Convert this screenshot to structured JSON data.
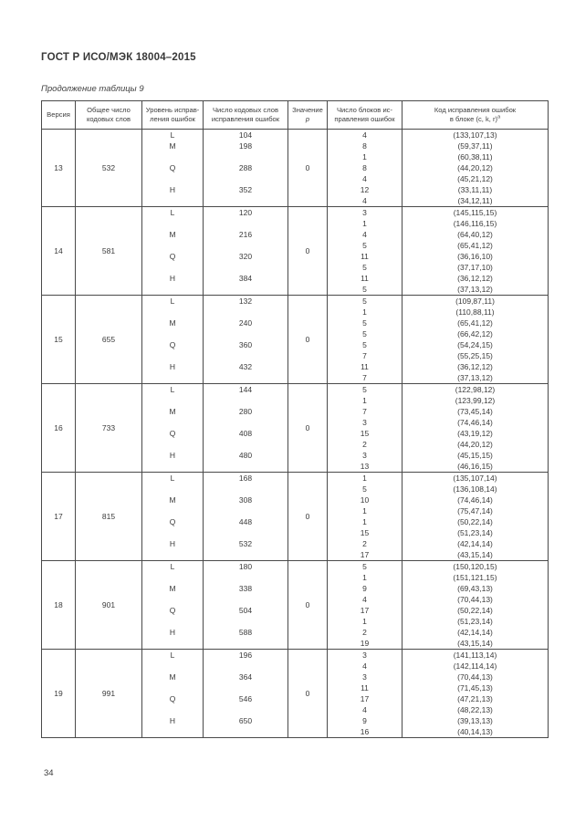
{
  "header": {
    "title": "ГОСТ Р ИСО/МЭК 18004–2015"
  },
  "footer": {
    "page_number": "34"
  },
  "table": {
    "caption": "Продолжение таблицы 9",
    "headers": [
      {
        "line1": "Версия"
      },
      {
        "line1": "Общее число",
        "line2": "кодовых слов"
      },
      {
        "line1": "Уровень исправ-",
        "line2": "ления ошибок"
      },
      {
        "line1": "Число кодовых слов",
        "line2": "исправления ошибок"
      },
      {
        "line1": "Значение",
        "line2": "p",
        "line2_italic": true
      },
      {
        "line1": "Число блоков ис-",
        "line2": "правления ошибок"
      },
      {
        "line1": "Код исправления ошибок",
        "line2": "в блоке (c, k, r)",
        "line2_sup": "а"
      }
    ],
    "versions": [
      {
        "version": "13",
        "total_codewords": "532",
        "p_value": "0",
        "levels": [
          {
            "level": "L",
            "ec_codewords": "104",
            "blocks": [
              {
                "count": "4",
                "code": "(133,107,13)"
              }
            ]
          },
          {
            "level": "M",
            "ec_codewords": "198",
            "blocks": [
              {
                "count": "8",
                "code": "(59,37,11)"
              },
              {
                "count": "1",
                "code": "(60,38,11)"
              }
            ]
          },
          {
            "level": "Q",
            "ec_codewords": "288",
            "blocks": [
              {
                "count": "8",
                "code": "(44,20,12)"
              },
              {
                "count": "4",
                "code": "(45,21,12)"
              }
            ]
          },
          {
            "level": "H",
            "ec_codewords": "352",
            "blocks": [
              {
                "count": "12",
                "code": "(33,11,11)"
              },
              {
                "count": "4",
                "code": "(34,12,11)"
              }
            ]
          }
        ]
      },
      {
        "version": "14",
        "total_codewords": "581",
        "p_value": "0",
        "levels": [
          {
            "level": "L",
            "ec_codewords": "120",
            "blocks": [
              {
                "count": "3",
                "code": "(145,115,15)"
              },
              {
                "count": "1",
                "code": "(146,116,15)"
              }
            ]
          },
          {
            "level": "M",
            "ec_codewords": "216",
            "blocks": [
              {
                "count": "4",
                "code": "(64,40,12)"
              },
              {
                "count": "5",
                "code": "(65,41,12)"
              }
            ]
          },
          {
            "level": "Q",
            "ec_codewords": "320",
            "blocks": [
              {
                "count": "11",
                "code": "(36,16,10)"
              },
              {
                "count": "5",
                "code": "(37,17,10)"
              }
            ]
          },
          {
            "level": "H",
            "ec_codewords": "384",
            "blocks": [
              {
                "count": "11",
                "code": "(36,12,12)"
              },
              {
                "count": "5",
                "code": "(37,13,12)"
              }
            ]
          }
        ]
      },
      {
        "version": "15",
        "total_codewords": "655",
        "p_value": "0",
        "levels": [
          {
            "level": "L",
            "ec_codewords": "132",
            "blocks": [
              {
                "count": "5",
                "code": "(109,87,11)"
              },
              {
                "count": "1",
                "code": "(110,88,11)"
              }
            ]
          },
          {
            "level": "M",
            "ec_codewords": "240",
            "blocks": [
              {
                "count": "5",
                "code": "(65,41,12)"
              },
              {
                "count": "5",
                "code": "(66,42,12)"
              }
            ]
          },
          {
            "level": "Q",
            "ec_codewords": "360",
            "blocks": [
              {
                "count": "5",
                "code": "(54,24,15)"
              },
              {
                "count": "7",
                "code": "(55,25,15)"
              }
            ]
          },
          {
            "level": "H",
            "ec_codewords": "432",
            "blocks": [
              {
                "count": "11",
                "code": "(36,12,12)"
              },
              {
                "count": "7",
                "code": "(37,13,12)"
              }
            ]
          }
        ]
      },
      {
        "version": "16",
        "total_codewords": "733",
        "p_value": "0",
        "levels": [
          {
            "level": "L",
            "ec_codewords": "144",
            "blocks": [
              {
                "count": "5",
                "code": "(122,98,12)"
              },
              {
                "count": "1",
                "code": "(123,99,12)"
              }
            ]
          },
          {
            "level": "M",
            "ec_codewords": "280",
            "blocks": [
              {
                "count": "7",
                "code": "(73,45,14)"
              },
              {
                "count": "3",
                "code": "(74,46,14)"
              }
            ]
          },
          {
            "level": "Q",
            "ec_codewords": "408",
            "blocks": [
              {
                "count": "15",
                "code": "(43,19,12)"
              },
              {
                "count": "2",
                "code": "(44,20,12)"
              }
            ]
          },
          {
            "level": "H",
            "ec_codewords": "480",
            "blocks": [
              {
                "count": "3",
                "code": "(45,15,15)"
              },
              {
                "count": "13",
                "code": "(46,16,15)"
              }
            ]
          }
        ]
      },
      {
        "version": "17",
        "total_codewords": "815",
        "p_value": "0",
        "levels": [
          {
            "level": "L",
            "ec_codewords": "168",
            "blocks": [
              {
                "count": "1",
                "code": "(135,107,14)"
              },
              {
                "count": "5",
                "code": "(136,108,14)"
              }
            ]
          },
          {
            "level": "M",
            "ec_codewords": "308",
            "blocks": [
              {
                "count": "10",
                "code": "(74,46,14)"
              },
              {
                "count": "1",
                "code": "(75,47,14)"
              }
            ]
          },
          {
            "level": "Q",
            "ec_codewords": "448",
            "blocks": [
              {
                "count": "1",
                "code": "(50,22,14)"
              },
              {
                "count": "15",
                "code": "(51,23,14)"
              }
            ]
          },
          {
            "level": "H",
            "ec_codewords": "532",
            "blocks": [
              {
                "count": "2",
                "code": "(42,14,14)"
              },
              {
                "count": "17",
                "code": "(43,15,14)"
              }
            ]
          }
        ]
      },
      {
        "version": "18",
        "total_codewords": "901",
        "p_value": "0",
        "levels": [
          {
            "level": "L",
            "ec_codewords": "180",
            "blocks": [
              {
                "count": "5",
                "code": "(150,120,15)"
              },
              {
                "count": "1",
                "code": "(151,121,15)"
              }
            ]
          },
          {
            "level": "M",
            "ec_codewords": "338",
            "blocks": [
              {
                "count": "9",
                "code": "(69,43,13)"
              },
              {
                "count": "4",
                "code": "(70,44,13)"
              }
            ]
          },
          {
            "level": "Q",
            "ec_codewords": "504",
            "blocks": [
              {
                "count": "17",
                "code": "(50,22,14)"
              },
              {
                "count": "1",
                "code": "(51,23,14)"
              }
            ]
          },
          {
            "level": "H",
            "ec_codewords": "588",
            "blocks": [
              {
                "count": "2",
                "code": "(42,14,14)"
              },
              {
                "count": "19",
                "code": "(43,15,14)"
              }
            ]
          }
        ]
      },
      {
        "version": "19",
        "total_codewords": "991",
        "p_value": "0",
        "levels": [
          {
            "level": "L",
            "ec_codewords": "196",
            "blocks": [
              {
                "count": "3",
                "code": "(141,113,14)"
              },
              {
                "count": "4",
                "code": "(142,114,14)"
              }
            ]
          },
          {
            "level": "M",
            "ec_codewords": "364",
            "blocks": [
              {
                "count": "3",
                "code": "(70,44,13)"
              },
              {
                "count": "11",
                "code": "(71,45,13)"
              }
            ]
          },
          {
            "level": "Q",
            "ec_codewords": "546",
            "blocks": [
              {
                "count": "17",
                "code": "(47,21,13)"
              },
              {
                "count": "4",
                "code": "(48,22,13)"
              }
            ]
          },
          {
            "level": "H",
            "ec_codewords": "650",
            "blocks": [
              {
                "count": "9",
                "code": "(39,13,13)"
              },
              {
                "count": "16",
                "code": "(40,14,13)"
              }
            ]
          }
        ]
      }
    ]
  }
}
